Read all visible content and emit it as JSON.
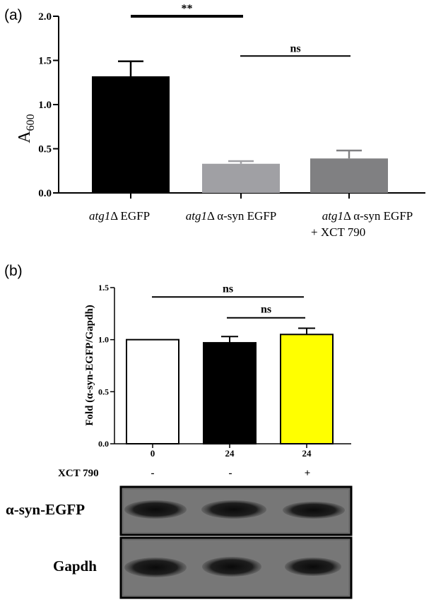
{
  "panel_a": {
    "label": "(a)",
    "ylabel_main": "A",
    "ylabel_sub": "600",
    "sig_labels": [
      "**",
      "ns"
    ],
    "category_lines": [
      [
        {
          "text": "atg1",
          "italic": true
        },
        {
          "text": "Δ EGFP",
          "italic": false
        }
      ],
      [
        {
          "text": "atg1",
          "italic": true
        },
        {
          "text": "Δ α-syn EGFP",
          "italic": false
        }
      ],
      [
        {
          "text": "atg1",
          "italic": true
        },
        {
          "text": "Δ α-syn EGFP",
          "italic": false
        }
      ]
    ],
    "category_line2": [
      "",
      "",
      "+ XCT 790"
    ]
  },
  "panel_b": {
    "label": "(b)",
    "ylabel": "Fold (α-syn-EGFP/Gapdh)",
    "sig_labels": [
      "ns",
      "ns"
    ],
    "row_label": "XCT 790",
    "treatment_signs": [
      "-",
      "-",
      "+"
    ],
    "blot_labels": [
      "α-syn-EGFP",
      "Gapdh"
    ]
  },
  "chart_data": [
    {
      "type": "bar",
      "categories": [
        "atg1Δ EGFP",
        "atg1Δ α-syn EGFP",
        "atg1Δ α-syn EGFP + XCT 790"
      ],
      "values": [
        1.32,
        0.33,
        0.39
      ],
      "errors": [
        0.17,
        0.03,
        0.09
      ],
      "colors": [
        "#000000",
        "#a0a0a4",
        "#808082"
      ],
      "ylim": [
        0,
        2.0
      ],
      "yticks": [
        "0.0",
        "0.5",
        "1.0",
        "1.5",
        "2.0"
      ],
      "ytick_values": [
        0,
        0.5,
        1.0,
        1.5,
        2.0
      ],
      "ylabel": "A600",
      "xlabel": "",
      "title": "",
      "grid": false,
      "significance": [
        {
          "from": 0,
          "to": 1,
          "y": 2.0,
          "label": "**"
        },
        {
          "from": 1,
          "to": 2,
          "y": 1.55,
          "label": "ns"
        }
      ]
    },
    {
      "type": "bar",
      "categories": [
        "0",
        "24",
        "24"
      ],
      "values": [
        1.0,
        0.97,
        1.05
      ],
      "errors": [
        0,
        0.06,
        0.06
      ],
      "colors": [
        "#ffffff",
        "#000000",
        "#ffff00"
      ],
      "ylim": [
        0,
        1.5
      ],
      "yticks": [
        "0.0",
        "0.5",
        "1.0",
        "1.5"
      ],
      "ytick_values": [
        0,
        0.5,
        1.0,
        1.5
      ],
      "ylabel": "Fold (α-syn-EGFP/Gapdh)",
      "xlabel": "",
      "title": "",
      "grid": false,
      "significance": [
        {
          "from": 0,
          "to": 2,
          "y": 1.41,
          "label": "ns"
        },
        {
          "from": 1,
          "to": 2,
          "y": 1.21,
          "label": "ns"
        }
      ]
    }
  ]
}
